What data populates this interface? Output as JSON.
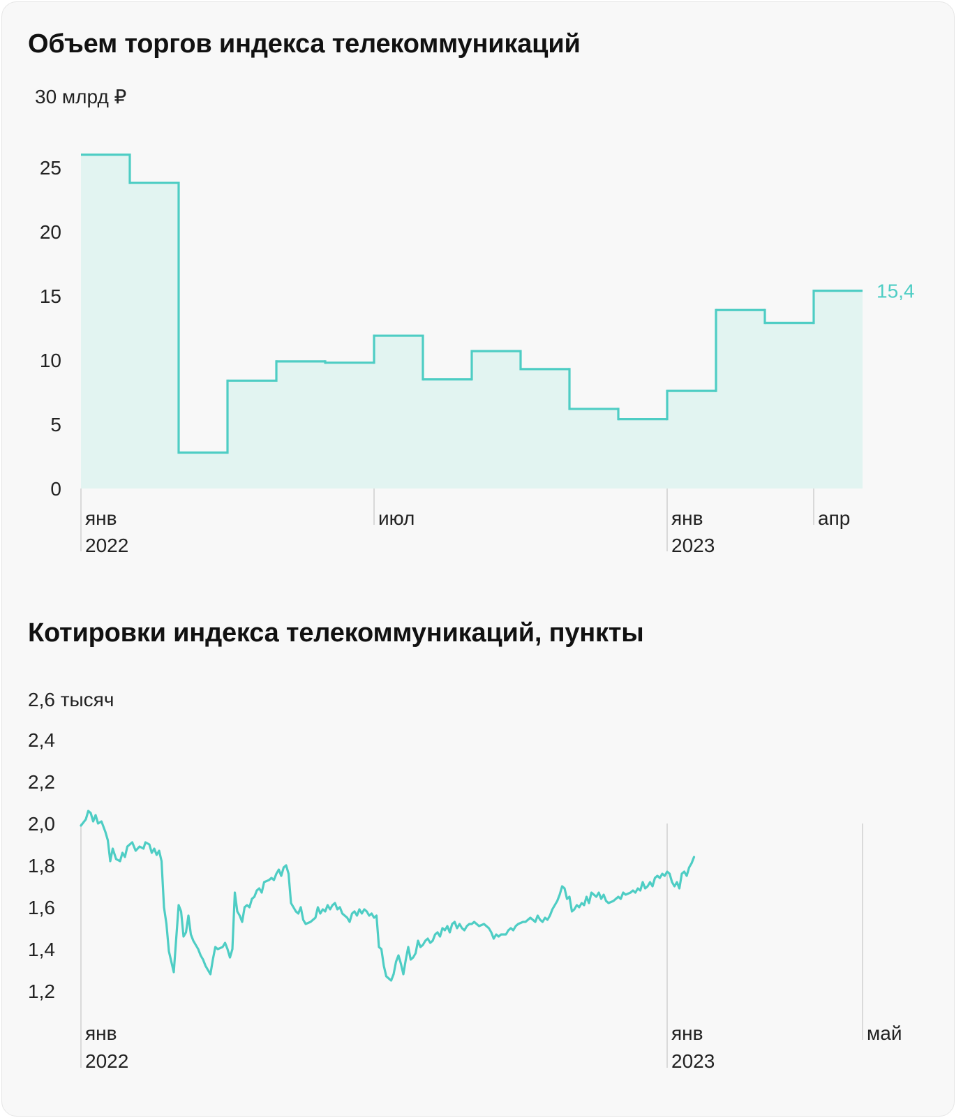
{
  "colors": {
    "accent": "#4ecdc4",
    "fill": "#e2f4f1",
    "grid": "#cfcfcf",
    "text": "#222222",
    "background": "#f8f8f8"
  },
  "chart_data": [
    {
      "type": "area",
      "title": "Объем торгов индекса телекоммуникаций",
      "unit_label": "30 млрд ₽",
      "ylim": [
        0,
        30
      ],
      "y_ticks": [
        "25",
        "20",
        "15",
        "10",
        "5",
        "0"
      ],
      "y_tick_values": [
        25,
        20,
        15,
        10,
        5,
        0
      ],
      "x_ticks": [
        {
          "line1": "янв",
          "line2": "2022"
        },
        {
          "line1": "июл",
          "line2": ""
        },
        {
          "line1": "янв",
          "line2": "2023"
        },
        {
          "line1": "апр",
          "line2": ""
        }
      ],
      "x_tick_months": [
        0,
        6,
        12,
        15
      ],
      "step": "monthly",
      "categories": [
        "2022-01",
        "2022-02",
        "2022-03",
        "2022-04",
        "2022-05",
        "2022-06",
        "2022-07",
        "2022-08",
        "2022-09",
        "2022-10",
        "2022-11",
        "2022-12",
        "2023-01",
        "2023-02",
        "2023-03",
        "2023-04"
      ],
      "values": [
        26.0,
        23.8,
        2.8,
        8.4,
        9.9,
        9.8,
        11.9,
        8.5,
        10.7,
        9.3,
        6.2,
        5.4,
        7.6,
        13.9,
        12.9,
        15.4
      ],
      "end_label": "15,4",
      "grid": false
    },
    {
      "type": "line",
      "title": "Котировки индекса телекоммуникаций, пункты",
      "unit_label": "2,6 тысяч",
      "ylim": [
        1.1,
        2.6
      ],
      "y_ticks": [
        "2,4",
        "2,2",
        "2,0",
        "1,8",
        "1,6",
        "1,4",
        "1,2"
      ],
      "y_tick_values": [
        2.4,
        2.2,
        2.0,
        1.8,
        1.6,
        1.4,
        1.2
      ],
      "x_ticks": [
        {
          "line1": "янв",
          "line2": "2022"
        },
        {
          "line1": "янв",
          "line2": "2023"
        },
        {
          "line1": "май",
          "line2": ""
        }
      ],
      "x_tick_months": [
        0,
        12,
        16
      ],
      "x_range_months": [
        0,
        16.5
      ],
      "series": [
        {
          "points": [
            [
              0.0,
              1.99
            ],
            [
              0.1,
              2.02
            ],
            [
              0.15,
              2.06
            ],
            [
              0.2,
              2.05
            ],
            [
              0.25,
              2.01
            ],
            [
              0.3,
              2.04
            ],
            [
              0.35,
              2.0
            ],
            [
              0.42,
              2.01
            ],
            [
              0.5,
              1.96
            ],
            [
              0.55,
              1.92
            ],
            [
              0.6,
              1.82
            ],
            [
              0.65,
              1.88
            ],
            [
              0.72,
              1.83
            ],
            [
              0.8,
              1.82
            ],
            [
              0.85,
              1.86
            ],
            [
              0.9,
              1.84
            ],
            [
              0.95,
              1.89
            ],
            [
              1.05,
              1.91
            ],
            [
              1.12,
              1.87
            ],
            [
              1.2,
              1.89
            ],
            [
              1.28,
              1.88
            ],
            [
              1.32,
              1.91
            ],
            [
              1.4,
              1.9
            ],
            [
              1.45,
              1.86
            ],
            [
              1.5,
              1.88
            ],
            [
              1.55,
              1.85
            ],
            [
              1.6,
              1.87
            ],
            [
              1.65,
              1.82
            ],
            [
              1.7,
              1.6
            ],
            [
              1.75,
              1.52
            ],
            [
              1.8,
              1.39
            ],
            [
              1.85,
              1.34
            ],
            [
              1.9,
              1.29
            ],
            [
              1.95,
              1.45
            ],
            [
              2.0,
              1.61
            ],
            [
              2.05,
              1.58
            ],
            [
              2.1,
              1.46
            ],
            [
              2.15,
              1.48
            ],
            [
              2.2,
              1.56
            ],
            [
              2.25,
              1.47
            ],
            [
              2.3,
              1.44
            ],
            [
              2.35,
              1.42
            ],
            [
              2.4,
              1.4
            ],
            [
              2.45,
              1.37
            ],
            [
              2.5,
              1.35
            ],
            [
              2.55,
              1.32
            ],
            [
              2.6,
              1.3
            ],
            [
              2.65,
              1.28
            ],
            [
              2.7,
              1.35
            ],
            [
              2.75,
              1.41
            ],
            [
              2.8,
              1.4
            ],
            [
              2.9,
              1.41
            ],
            [
              2.95,
              1.43
            ],
            [
              3.0,
              1.4
            ],
            [
              3.05,
              1.36
            ],
            [
              3.1,
              1.4
            ],
            [
              3.15,
              1.67
            ],
            [
              3.2,
              1.58
            ],
            [
              3.25,
              1.56
            ],
            [
              3.3,
              1.53
            ],
            [
              3.35,
              1.6
            ],
            [
              3.4,
              1.61
            ],
            [
              3.45,
              1.6
            ],
            [
              3.5,
              1.64
            ],
            [
              3.55,
              1.65
            ],
            [
              3.6,
              1.68
            ],
            [
              3.65,
              1.69
            ],
            [
              3.7,
              1.67
            ],
            [
              3.75,
              1.72
            ],
            [
              3.85,
              1.73
            ],
            [
              3.9,
              1.74
            ],
            [
              3.95,
              1.73
            ],
            [
              4.0,
              1.76
            ],
            [
              4.05,
              1.78
            ],
            [
              4.1,
              1.75
            ],
            [
              4.15,
              1.79
            ],
            [
              4.2,
              1.8
            ],
            [
              4.25,
              1.76
            ],
            [
              4.3,
              1.62
            ],
            [
              4.35,
              1.6
            ],
            [
              4.4,
              1.58
            ],
            [
              4.45,
              1.57
            ],
            [
              4.5,
              1.6
            ],
            [
              4.55,
              1.54
            ],
            [
              4.6,
              1.52
            ],
            [
              4.7,
              1.53
            ],
            [
              4.75,
              1.54
            ],
            [
              4.8,
              1.55
            ],
            [
              4.85,
              1.6
            ],
            [
              4.9,
              1.57
            ],
            [
              4.95,
              1.59
            ],
            [
              5.0,
              1.58
            ],
            [
              5.05,
              1.61
            ],
            [
              5.1,
              1.59
            ],
            [
              5.15,
              1.61
            ],
            [
              5.2,
              1.62
            ],
            [
              5.25,
              1.59
            ],
            [
              5.3,
              1.6
            ],
            [
              5.35,
              1.57
            ],
            [
              5.45,
              1.55
            ],
            [
              5.5,
              1.53
            ],
            [
              5.55,
              1.57
            ],
            [
              5.6,
              1.58
            ],
            [
              5.65,
              1.56
            ],
            [
              5.7,
              1.59
            ],
            [
              5.75,
              1.57
            ],
            [
              5.8,
              1.59
            ],
            [
              5.85,
              1.58
            ],
            [
              5.9,
              1.56
            ],
            [
              5.95,
              1.57
            ],
            [
              6.0,
              1.55
            ],
            [
              6.05,
              1.56
            ],
            [
              6.1,
              1.41
            ],
            [
              6.15,
              1.4
            ],
            [
              6.2,
              1.32
            ],
            [
              6.25,
              1.27
            ],
            [
              6.3,
              1.26
            ],
            [
              6.35,
              1.25
            ],
            [
              6.4,
              1.28
            ],
            [
              6.45,
              1.34
            ],
            [
              6.5,
              1.37
            ],
            [
              6.55,
              1.33
            ],
            [
              6.6,
              1.28
            ],
            [
              6.65,
              1.35
            ],
            [
              6.7,
              1.41
            ],
            [
              6.75,
              1.35
            ],
            [
              6.8,
              1.36
            ],
            [
              6.85,
              1.38
            ],
            [
              6.9,
              1.44
            ],
            [
              6.95,
              1.41
            ],
            [
              7.0,
              1.42
            ],
            [
              7.05,
              1.44
            ],
            [
              7.1,
              1.45
            ],
            [
              7.15,
              1.43
            ],
            [
              7.2,
              1.44
            ],
            [
              7.25,
              1.47
            ],
            [
              7.3,
              1.48
            ],
            [
              7.35,
              1.46
            ],
            [
              7.4,
              1.5
            ],
            [
              7.45,
              1.49
            ],
            [
              7.5,
              1.51
            ],
            [
              7.55,
              1.48
            ],
            [
              7.6,
              1.52
            ],
            [
              7.65,
              1.53
            ],
            [
              7.7,
              1.5
            ],
            [
              7.75,
              1.52
            ],
            [
              7.8,
              1.5
            ],
            [
              7.85,
              1.49
            ],
            [
              7.9,
              1.51
            ],
            [
              7.95,
              1.52
            ],
            [
              8.0,
              1.52
            ],
            [
              8.05,
              1.53
            ],
            [
              8.1,
              1.52
            ],
            [
              8.15,
              1.51
            ],
            [
              8.25,
              1.52
            ],
            [
              8.3,
              1.51
            ],
            [
              8.35,
              1.5
            ],
            [
              8.4,
              1.48
            ],
            [
              8.45,
              1.45
            ],
            [
              8.5,
              1.47
            ],
            [
              8.55,
              1.46
            ],
            [
              8.6,
              1.47
            ],
            [
              8.7,
              1.47
            ],
            [
              8.75,
              1.49
            ],
            [
              8.8,
              1.5
            ],
            [
              8.85,
              1.49
            ],
            [
              8.9,
              1.51
            ],
            [
              8.95,
              1.52
            ],
            [
              9.05,
              1.53
            ],
            [
              9.1,
              1.53
            ],
            [
              9.15,
              1.54
            ],
            [
              9.2,
              1.55
            ],
            [
              9.25,
              1.54
            ],
            [
              9.3,
              1.53
            ],
            [
              9.35,
              1.56
            ],
            [
              9.4,
              1.54
            ],
            [
              9.45,
              1.53
            ],
            [
              9.5,
              1.55
            ],
            [
              9.55,
              1.54
            ],
            [
              9.6,
              1.56
            ],
            [
              9.65,
              1.59
            ],
            [
              9.7,
              1.61
            ],
            [
              9.75,
              1.63
            ],
            [
              9.8,
              1.66
            ],
            [
              9.85,
              1.7
            ],
            [
              9.9,
              1.69
            ],
            [
              9.95,
              1.64
            ],
            [
              10.0,
              1.65
            ],
            [
              10.05,
              1.58
            ],
            [
              10.1,
              1.59
            ],
            [
              10.15,
              1.61
            ],
            [
              10.2,
              1.6
            ],
            [
              10.25,
              1.62
            ],
            [
              10.3,
              1.61
            ],
            [
              10.35,
              1.65
            ],
            [
              10.4,
              1.62
            ],
            [
              10.45,
              1.67
            ],
            [
              10.5,
              1.66
            ],
            [
              10.55,
              1.65
            ],
            [
              10.6,
              1.67
            ],
            [
              10.65,
              1.64
            ],
            [
              10.7,
              1.66
            ],
            [
              10.75,
              1.63
            ],
            [
              10.8,
              1.62
            ],
            [
              10.9,
              1.63
            ],
            [
              10.95,
              1.64
            ],
            [
              11.0,
              1.65
            ],
            [
              11.05,
              1.64
            ],
            [
              11.1,
              1.67
            ],
            [
              11.15,
              1.66
            ],
            [
              11.25,
              1.67
            ],
            [
              11.3,
              1.68
            ],
            [
              11.35,
              1.67
            ],
            [
              11.4,
              1.69
            ],
            [
              11.45,
              1.68
            ],
            [
              11.5,
              1.72
            ],
            [
              11.55,
              1.69
            ],
            [
              11.6,
              1.7
            ],
            [
              11.65,
              1.72
            ],
            [
              11.7,
              1.7
            ],
            [
              11.75,
              1.74
            ],
            [
              11.8,
              1.75
            ],
            [
              11.85,
              1.74
            ],
            [
              11.9,
              1.76
            ],
            [
              11.95,
              1.75
            ],
            [
              12.0,
              1.77
            ],
            [
              12.05,
              1.76
            ],
            [
              12.1,
              1.72
            ],
            [
              12.15,
              1.7
            ],
            [
              12.2,
              1.72
            ],
            [
              12.25,
              1.69
            ],
            [
              12.3,
              1.76
            ],
            [
              12.35,
              1.77
            ],
            [
              12.4,
              1.75
            ],
            [
              12.45,
              1.79
            ],
            [
              12.5,
              1.81
            ],
            [
              12.55,
              1.84
            ]
          ]
        }
      ],
      "grid": false
    }
  ]
}
